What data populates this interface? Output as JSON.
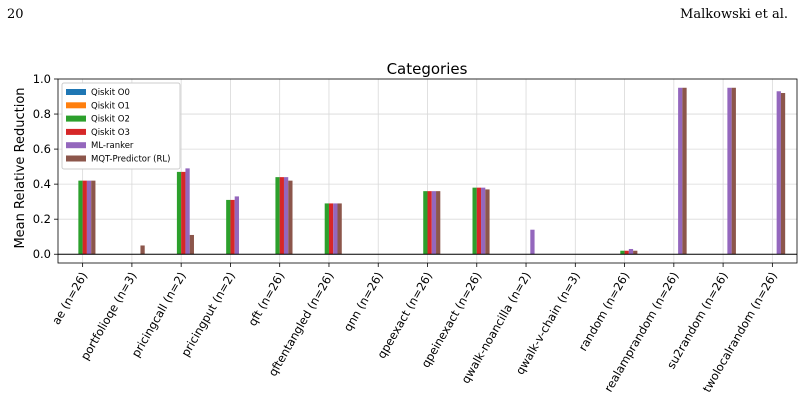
{
  "header": {
    "page_number": "20",
    "running_head": "Malkowski et al."
  },
  "chart_data": {
    "type": "bar",
    "title": "Categories",
    "xlabel": "",
    "ylabel": "Mean Relative Reduction",
    "ylim": [
      -0.05,
      1.0
    ],
    "yticks": [
      "0.0",
      "0.2",
      "0.4",
      "0.6",
      "0.8",
      "1.0"
    ],
    "grid": true,
    "legend_position": "top-left",
    "categories": [
      "ae (n=26)",
      "portfolioqe (n=3)",
      "pricingcall (n=2)",
      "pricingput (n=2)",
      "qft (n=26)",
      "qftentangled (n=26)",
      "qnn (n=26)",
      "qpeexact (n=26)",
      "qpeinexact (n=26)",
      "qwalk-noancilla (n=2)",
      "qwalk-v-chain (n=3)",
      "random (n=26)",
      "realamprandom (n=26)",
      "su2random (n=26)",
      "twolocalrandom (n=26)"
    ],
    "series": [
      {
        "name": "Qiskit O0",
        "color": "#1f77b4",
        "values": [
          0,
          0,
          0,
          0,
          0,
          0,
          0,
          0,
          0,
          0,
          0,
          0,
          0,
          0,
          0
        ]
      },
      {
        "name": "Qiskit O1",
        "color": "#ff7f0e",
        "values": [
          0,
          0,
          0,
          0,
          0,
          0,
          0,
          0,
          0,
          0,
          0,
          0,
          0,
          0,
          0
        ]
      },
      {
        "name": "Qiskit O2",
        "color": "#2ca02c",
        "values": [
          0.42,
          0,
          0.47,
          0.31,
          0.44,
          0.29,
          0,
          0.36,
          0.38,
          0,
          0,
          0.02,
          0,
          0,
          0
        ]
      },
      {
        "name": "Qiskit O3",
        "color": "#d62728",
        "values": [
          0.42,
          0,
          0.47,
          0.31,
          0.44,
          0.29,
          0,
          0.36,
          0.38,
          0,
          0,
          0.02,
          0,
          0,
          0
        ]
      },
      {
        "name": "ML-ranker",
        "color": "#9467bd",
        "values": [
          0.42,
          0,
          0.49,
          0.33,
          0.44,
          0.29,
          0,
          0.36,
          0.38,
          0.14,
          0,
          0.03,
          0.95,
          0.95,
          0.93
        ]
      },
      {
        "name": "MQT-Predictor (RL)",
        "color": "#8c564b",
        "values": [
          0.42,
          0.05,
          0.11,
          0,
          0.42,
          0.29,
          0,
          0.36,
          0.37,
          0,
          0,
          0.02,
          0.95,
          0.95,
          0.92
        ]
      }
    ]
  }
}
